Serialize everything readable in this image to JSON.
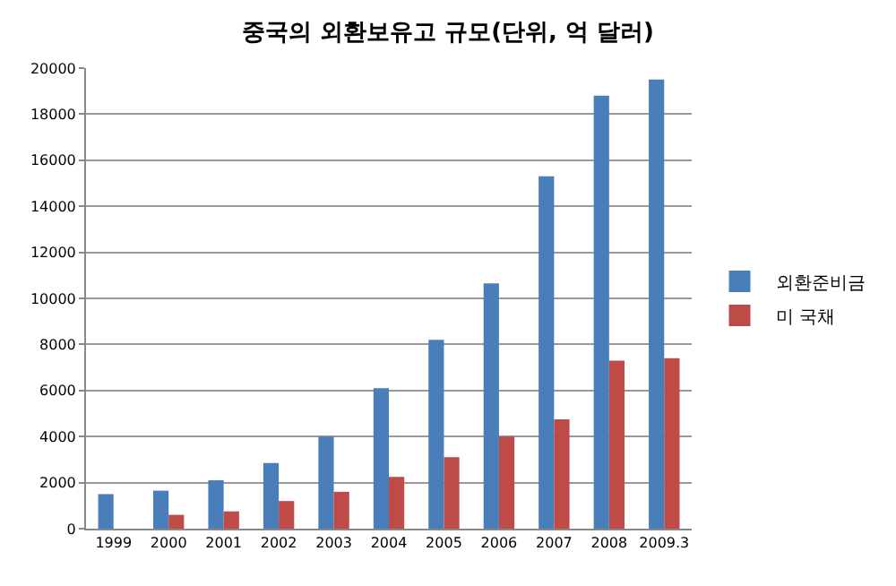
{
  "chart_data": {
    "type": "bar",
    "title": "중국의 외환보유고 규모(단위, 억 달러)",
    "categories": [
      "1999",
      "2000",
      "2001",
      "2002",
      "2003",
      "2004",
      "2005",
      "2006",
      "2007",
      "2008",
      "2009.3"
    ],
    "series": [
      {
        "name": "외환준비금",
        "color": "#4a7ebb",
        "values": [
          1500,
          1650,
          2100,
          2850,
          4000,
          6100,
          8200,
          10650,
          15300,
          18800,
          19500
        ]
      },
      {
        "name": "미 국채",
        "color": "#be4b48",
        "values": [
          null,
          600,
          750,
          1200,
          1600,
          2250,
          3100,
          4000,
          4750,
          7300,
          7400
        ]
      }
    ],
    "ylim": [
      0,
      20000
    ],
    "yticks": [
      0,
      2000,
      4000,
      6000,
      8000,
      10000,
      12000,
      14000,
      16000,
      18000,
      20000
    ],
    "grid": "y",
    "legend": "right"
  }
}
